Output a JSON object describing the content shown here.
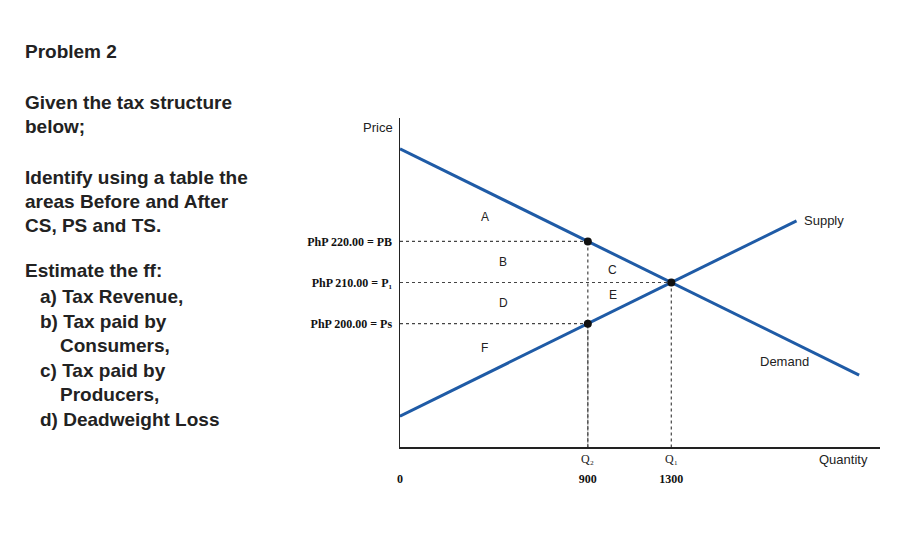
{
  "problem": {
    "heading": "Problem 2",
    "intro": "Given the tax structure below;",
    "task": "Identify using a table the areas Before and After CS, PS and TS.",
    "estimate": "Estimate the ff:",
    "items": [
      "a) Tax Revenue,",
      "b) Tax paid by Consumers,",
      "c) Tax paid by Producers,",
      "d) Deadweight Loss"
    ]
  },
  "chart_data": {
    "type": "line",
    "x_label": "Quantity",
    "y_label": "Price",
    "xlim": [
      0,
      2300
    ],
    "ylim": [
      170,
      250
    ],
    "xticks": [
      0,
      900,
      1300
    ],
    "yticks": [
      {
        "value": 200,
        "label": "PhP 200.00 = Ps"
      },
      {
        "value": 210,
        "label": "PhP 210.00 = P₁"
      },
      {
        "value": 220,
        "label": "PhP 220.00 = PB"
      }
    ],
    "grid": false,
    "series": [
      {
        "name": "Supply",
        "color": "#1f5ba6",
        "x": [
          0,
          1900
        ],
        "values": [
          177.5,
          225
        ]
      },
      {
        "name": "Demand",
        "color": "#1f5ba6",
        "x": [
          0,
          2200
        ],
        "values": [
          242.5,
          187.5
        ]
      }
    ],
    "points": [
      {
        "x": 900,
        "y": 220
      },
      {
        "x": 1300,
        "y": 210
      },
      {
        "x": 900,
        "y": 200
      }
    ],
    "quantity_labels": [
      {
        "x": 900,
        "label": "Q₂"
      },
      {
        "x": 1300,
        "label": "Q₁"
      }
    ],
    "area_labels": [
      "A",
      "B",
      "C",
      "D",
      "E",
      "F"
    ]
  }
}
